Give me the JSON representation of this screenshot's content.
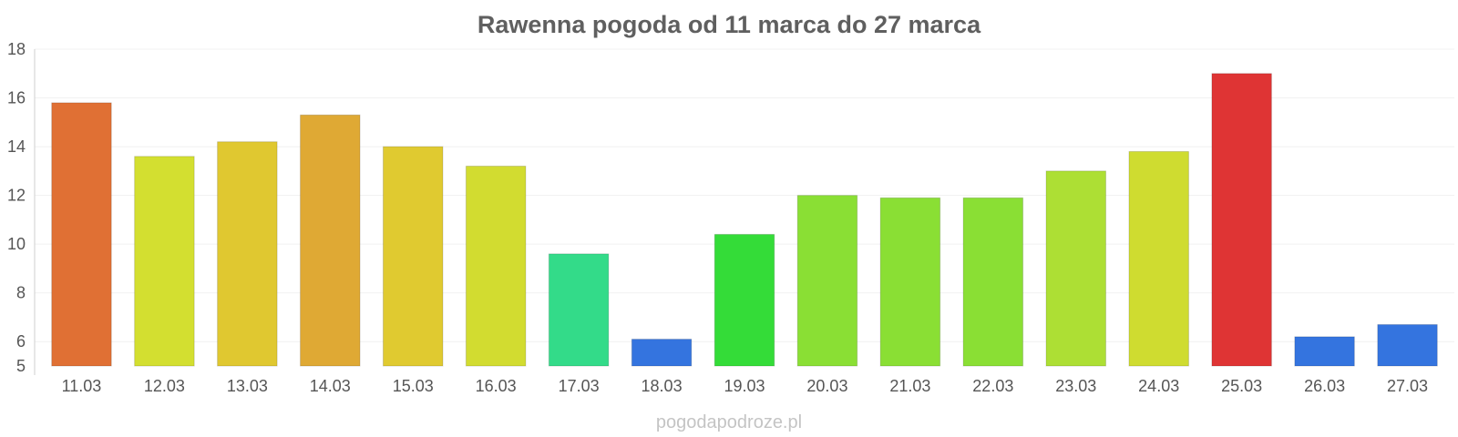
{
  "chart_data": {
    "type": "bar",
    "title": "Rawenna pogoda od 11 marca do 27 marca",
    "xlabel": "",
    "ylabel": "",
    "ylim": [
      5,
      18
    ],
    "yticks": [
      5,
      6,
      8,
      10,
      12,
      14,
      16,
      18
    ],
    "grid": true,
    "categories": [
      "11.03",
      "12.03",
      "13.03",
      "14.03",
      "15.03",
      "16.03",
      "17.03",
      "18.03",
      "19.03",
      "20.03",
      "21.03",
      "22.03",
      "23.03",
      "24.03",
      "25.03",
      "26.03",
      "27.03"
    ],
    "values": [
      15.8,
      13.6,
      14.2,
      15.3,
      14.0,
      13.2,
      9.6,
      6.1,
      10.4,
      12.0,
      11.9,
      11.9,
      13.0,
      13.8,
      17.0,
      6.2,
      6.7
    ],
    "colors": [
      "#e07034",
      "#d3df30",
      "#e0c830",
      "#dfa934",
      "#e0ca30",
      "#d2dc30",
      "#33db89",
      "#3474df",
      "#34dc38",
      "#8adf34",
      "#8adf34",
      "#8adf34",
      "#addf34",
      "#cfdc30",
      "#df3434",
      "#3474df",
      "#3474df"
    ]
  },
  "watermark": "pogodapodroze.pl"
}
